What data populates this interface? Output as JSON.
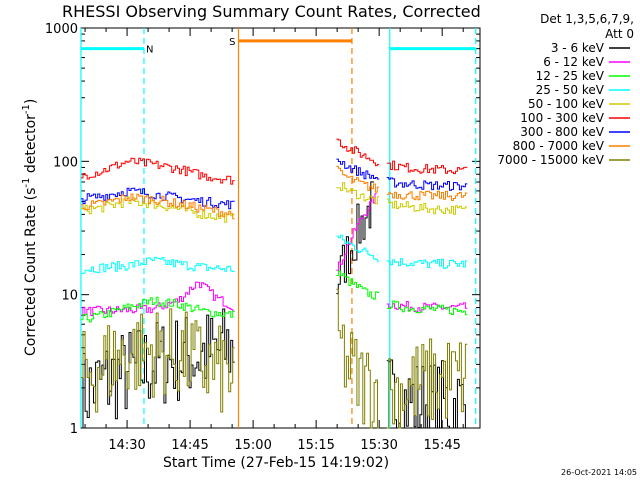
{
  "chart_data": {
    "type": "line",
    "title": "RHESSI Observing Summary Count Rates, Corrected",
    "xlabel": "Start Time (27-Feb-15 14:19:02)",
    "ylabel": "Corrected Count Rate (s^-1 detector^-1)",
    "ylabel_parts": {
      "pre": "Corrected Count Rate (s",
      "sup1": "-1",
      "mid": " detector",
      "sup2": "-1",
      "post": ")"
    },
    "y_scale": "log",
    "ylim": [
      1,
      1000
    ],
    "xlim": [
      14.3172,
      15.9
    ],
    "y_ticks": [
      {
        "value": 1,
        "label": "1"
      },
      {
        "value": 10,
        "label": "10"
      },
      {
        "value": 100,
        "label": "100"
      },
      {
        "value": 1000,
        "label": "1000"
      }
    ],
    "x_ticks": [
      {
        "value": 14.5,
        "label": "14:30"
      },
      {
        "value": 14.75,
        "label": "14:45"
      },
      {
        "value": 15.0,
        "label": "15:00"
      },
      {
        "value": 15.25,
        "label": "15:15"
      },
      {
        "value": 15.5,
        "label": "15:30"
      },
      {
        "value": 15.75,
        "label": "15:45"
      }
    ],
    "legend_header": [
      "Det 1,3,5,6,7,9,",
      "Att 0"
    ],
    "legend_placement": "right",
    "footer": "26-Oct-2021 14:05",
    "series": [
      {
        "name": "3 - 6 keV",
        "color": "#000000",
        "segments": [
          {
            "x": [
              14.317,
              14.4,
              14.5,
              14.6,
              14.7,
              14.8,
              14.927
            ],
            "y": [
              1.8,
              2.2,
              2.6,
              3.0,
              3.3,
              3.6,
              4.0
            ]
          },
          {
            "x": [
              15.33,
              15.37,
              15.42,
              15.46,
              15.48
            ],
            "y": [
              12,
              20,
              32,
              45,
              50
            ]
          },
          {
            "x": [
              15.53,
              15.6,
              15.7,
              15.85
            ],
            "y": [
              1.7,
              1.6,
              1.5,
              1.5
            ]
          }
        ]
      },
      {
        "name": "6 - 12 keV",
        "color": "#ff00ff",
        "segments": [
          {
            "x": [
              14.317,
              14.45,
              14.6,
              14.7,
              14.78,
              14.85,
              14.927
            ],
            "y": [
              7.5,
              7.6,
              7.8,
              9.0,
              12.5,
              9.5,
              8.0
            ]
          },
          {
            "x": [
              15.33,
              15.38,
              15.43,
              15.47,
              15.49
            ],
            "y": [
              15,
              25,
              38,
              50,
              55
            ]
          },
          {
            "x": [
              15.53,
              15.6,
              15.7,
              15.85
            ],
            "y": [
              8.5,
              8.2,
              8.0,
              8.0
            ]
          }
        ]
      },
      {
        "name": "12 - 25 keV",
        "color": "#00ff00",
        "segments": [
          {
            "x": [
              14.317,
              14.4,
              14.5,
              14.6,
              14.7,
              14.8,
              14.927
            ],
            "y": [
              6.5,
              7.0,
              8.0,
              9.0,
              8.5,
              7.5,
              7.0
            ]
          },
          {
            "x": [
              15.33,
              15.38,
              15.44,
              15.5
            ],
            "y": [
              15.0,
              12.5,
              10.5,
              9.5
            ]
          },
          {
            "x": [
              15.53,
              15.6,
              15.7,
              15.85
            ],
            "y": [
              8.5,
              8.0,
              7.8,
              7.5
            ]
          }
        ]
      },
      {
        "name": "25 - 50 keV",
        "color": "#00ffff",
        "segments": [
          {
            "x": [
              14.317,
              14.4,
              14.5,
              14.6,
              14.7,
              14.8,
              14.927
            ],
            "y": [
              15.5,
              16.0,
              16.5,
              18.0,
              17.0,
              16.0,
              15.5
            ]
          },
          {
            "x": [
              15.33,
              15.38,
              15.44,
              15.5
            ],
            "y": [
              27,
              24,
              21,
              19
            ]
          },
          {
            "x": [
              15.53,
              15.6,
              15.7,
              15.85
            ],
            "y": [
              18,
              17.5,
              17,
              17
            ]
          }
        ]
      },
      {
        "name": "50 - 100 keV",
        "color": "#cccc00",
        "segments": [
          {
            "x": [
              14.317,
              14.4,
              14.5,
              14.6,
              14.7,
              14.8,
              14.927
            ],
            "y": [
              43,
              45,
              50,
              48,
              44,
              40,
              37
            ]
          },
          {
            "x": [
              15.33,
              15.38,
              15.44,
              15.5
            ],
            "y": [
              68,
              60,
              54,
              50
            ]
          },
          {
            "x": [
              15.53,
              15.6,
              15.7,
              15.85
            ],
            "y": [
              48,
              46,
              44,
              43
            ]
          }
        ]
      },
      {
        "name": "100 - 300 keV",
        "color": "#ff0000",
        "segments": [
          {
            "x": [
              14.317,
              14.4,
              14.5,
              14.6,
              14.7,
              14.8,
              14.927
            ],
            "y": [
              78,
              85,
              100,
              95,
              88,
              78,
              72
            ]
          },
          {
            "x": [
              15.33,
              15.38,
              15.44,
              15.5
            ],
            "y": [
              145,
              125,
              110,
              98
            ]
          },
          {
            "x": [
              15.53,
              15.6,
              15.7,
              15.85
            ],
            "y": [
              95,
              90,
              87,
              85
            ]
          }
        ]
      },
      {
        "name": "300 - 800 keV",
        "color": "#0000ff",
        "segments": [
          {
            "x": [
              14.317,
              14.4,
              14.5,
              14.6,
              14.7,
              14.8,
              14.927
            ],
            "y": [
              52,
              55,
              60,
              57,
              53,
              50,
              47
            ]
          },
          {
            "x": [
              15.33,
              15.38,
              15.44,
              15.5
            ],
            "y": [
              105,
              90,
              80,
              74
            ]
          },
          {
            "x": [
              15.53,
              15.6,
              15.7,
              15.85
            ],
            "y": [
              70,
              68,
              66,
              65
            ]
          }
        ]
      },
      {
        "name": "800 - 7000 keV",
        "color": "#ff8000",
        "segments": [
          {
            "x": [
              14.317,
              14.4,
              14.5,
              14.6,
              14.7,
              14.8,
              14.927
            ],
            "y": [
              46,
              48,
              54,
              52,
              48,
              44,
              40
            ]
          },
          {
            "x": [
              15.33,
              15.38,
              15.44,
              15.5
            ],
            "y": [
              85,
              74,
              66,
              61
            ]
          },
          {
            "x": [
              15.53,
              15.6,
              15.7,
              15.85
            ],
            "y": [
              58,
              56,
              55,
              55
            ]
          }
        ]
      },
      {
        "name": "7000 - 15000 keV",
        "color": "#808000",
        "segments": [
          {
            "x": [
              14.317,
              14.4,
              14.5,
              14.6,
              14.7,
              14.8,
              14.927
            ],
            "y": [
              2.4,
              3.0,
              3.6,
              3.8,
              3.6,
              3.0,
              2.4
            ]
          },
          {
            "x": [
              15.33,
              15.37,
              15.42,
              15.48,
              15.5
            ],
            "y": [
              5.0,
              3.0,
              2.2,
              2.0,
              1.9
            ]
          },
          {
            "x": [
              15.53,
              15.6,
              15.7,
              15.85
            ],
            "y": [
              1.8,
              2.0,
              2.2,
              2.4
            ]
          }
        ]
      }
    ],
    "annotations": {
      "night_bars": [
        {
          "label": "N",
          "x_start": 14.317,
          "x_end": 14.567,
          "y": 700,
          "color": "#00ffff",
          "label_x": 14.575
        },
        {
          "label": "",
          "x_start": 15.542,
          "x_end": 15.883,
          "y": 700,
          "color": "#00ffff"
        }
      ],
      "saa_bar": {
        "label": "S",
        "x_start": 14.942,
        "x_end": 15.392,
        "y": 800,
        "color": "#ff8000",
        "label_x": 14.905
      },
      "night_lines": [
        {
          "x": 14.317,
          "style": "solid",
          "color": "#00ffff"
        },
        {
          "x": 14.567,
          "style": "dashed",
          "color": "#00ffff"
        },
        {
          "x": 15.542,
          "style": "solid",
          "color": "#00ffff"
        },
        {
          "x": 15.883,
          "style": "dashed",
          "color": "#00ffff"
        }
      ],
      "saa_lines": [
        {
          "x": 14.942,
          "style": "solid",
          "color": "#ff8000"
        },
        {
          "x": 15.392,
          "style": "dashed",
          "color": "#ff8000"
        }
      ]
    }
  }
}
